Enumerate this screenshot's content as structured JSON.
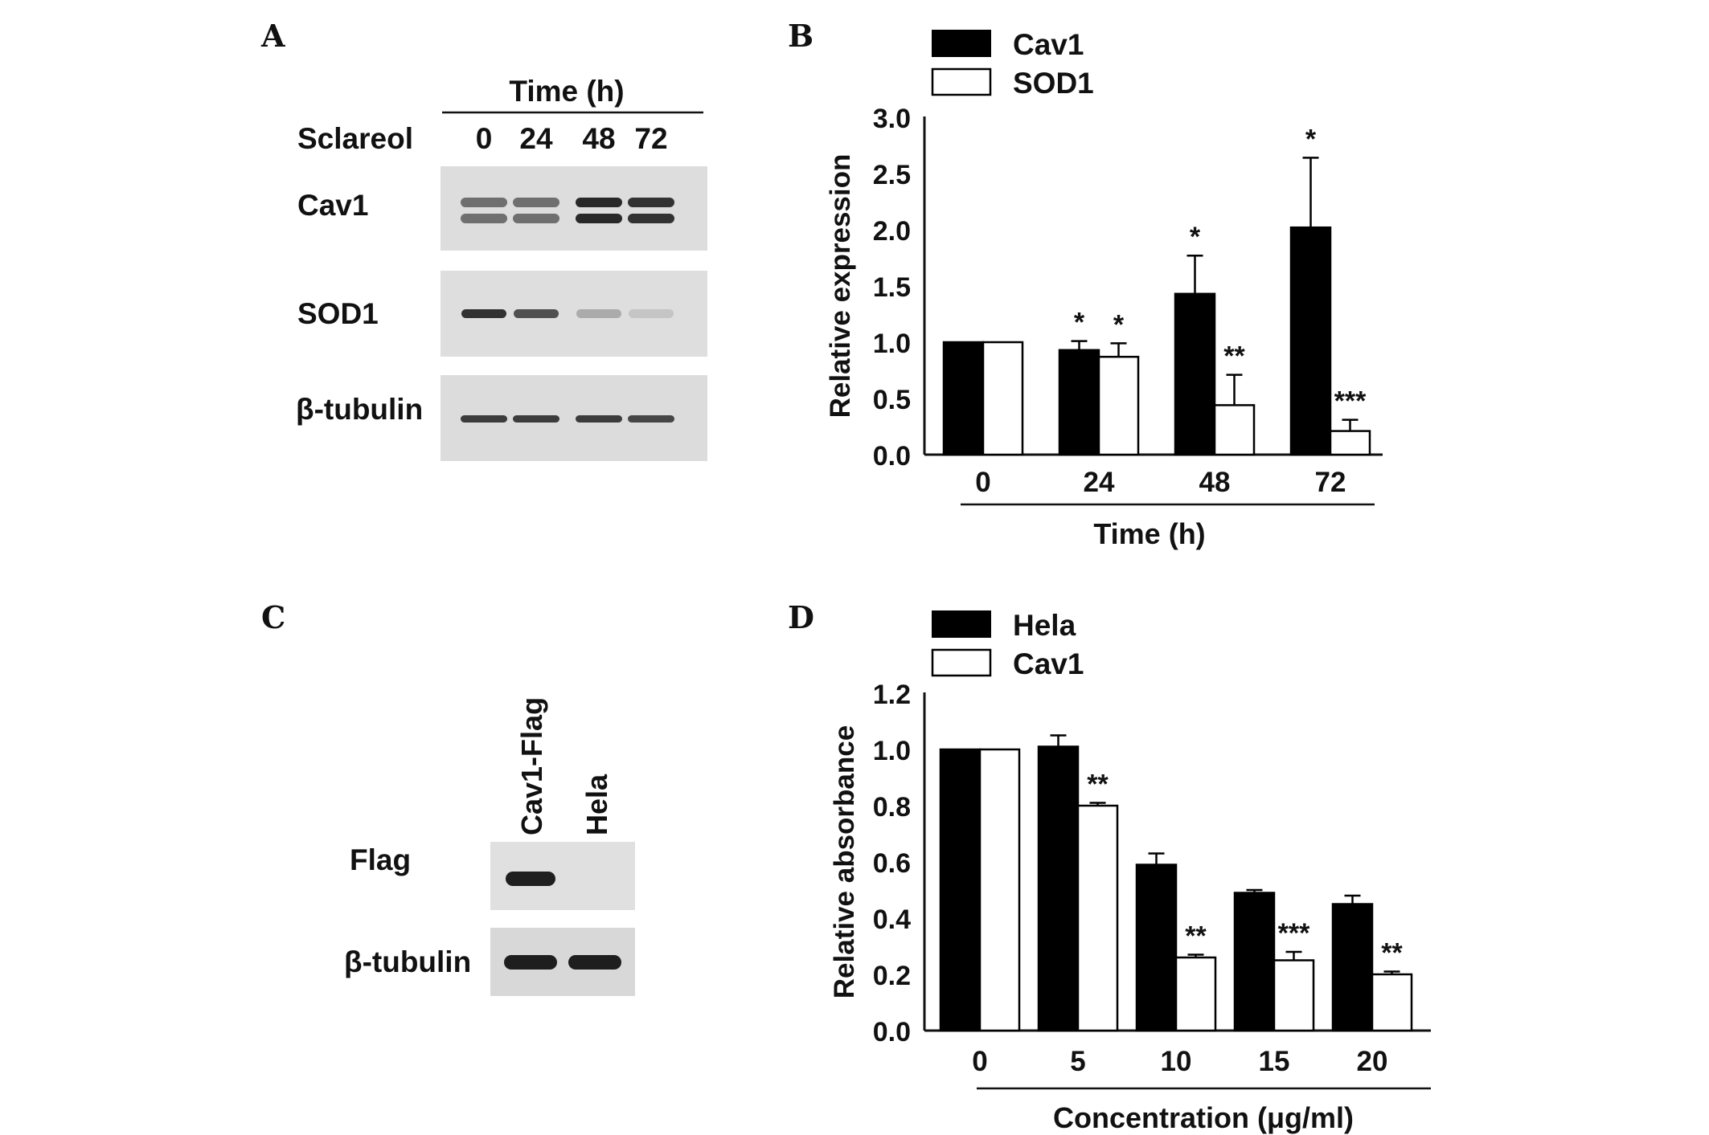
{
  "panels": {
    "A": {
      "label": "A",
      "header": "Time (h)",
      "treatment": "Sclareol",
      "lanes": [
        "0",
        "24",
        "48",
        "72"
      ],
      "rows": [
        {
          "name": "Cav1",
          "intensity": [
            0.55,
            0.55,
            0.9,
            0.85
          ]
        },
        {
          "name": "SOD1",
          "intensity": [
            0.85,
            0.7,
            0.25,
            0.12
          ]
        },
        {
          "name": "β-tubulin",
          "intensity": [
            0.8,
            0.8,
            0.8,
            0.75
          ]
        }
      ]
    },
    "C": {
      "label": "C",
      "lanes": [
        "Cav1-Flag",
        "Hela"
      ],
      "rows": [
        {
          "name": "Flag",
          "intensity": [
            0.95,
            0
          ]
        },
        {
          "name": "β-tubulin",
          "intensity": [
            0.95,
            0.95
          ]
        }
      ]
    }
  },
  "chart_data": [
    {
      "panel": "B",
      "type": "bar",
      "categories": [
        "0",
        "24",
        "48",
        "72"
      ],
      "xlabel": "Time (h)",
      "ylabel": "Relative expression",
      "ylim": [
        0,
        3.0
      ],
      "yticks": [
        "0.0",
        "0.5",
        "1.0",
        "1.5",
        "2.0",
        "2.5",
        "3.0"
      ],
      "legend": "top-left",
      "series": [
        {
          "name": "Cav1",
          "fill": "#000000",
          "values": [
            1.0,
            0.93,
            1.43,
            2.02
          ],
          "errors": [
            0,
            0.08,
            0.34,
            0.62
          ],
          "annotations": [
            "",
            "*",
            "*",
            "*"
          ]
        },
        {
          "name": "SOD1",
          "fill": "#ffffff",
          "values": [
            1.0,
            0.87,
            0.44,
            0.21
          ],
          "errors": [
            0,
            0.12,
            0.27,
            0.1
          ],
          "annotations": [
            "",
            "*",
            "**",
            "***"
          ]
        }
      ]
    },
    {
      "panel": "D",
      "type": "bar",
      "categories": [
        "0",
        "5",
        "10",
        "15",
        "20"
      ],
      "xlabel": "Concentration (μg/ml)",
      "ylabel": "Relative absorbance",
      "ylim": [
        0,
        1.2
      ],
      "yticks": [
        "0.0",
        "0.2",
        "0.4",
        "0.6",
        "0.8",
        "1.0",
        "1.2"
      ],
      "legend": "top-left",
      "series": [
        {
          "name": "Hela",
          "fill": "#000000",
          "values": [
            1.0,
            1.01,
            0.59,
            0.49,
            0.45
          ],
          "errors": [
            0,
            0.04,
            0.04,
            0.01,
            0.03
          ],
          "annotations": [
            "",
            "",
            "",
            "",
            ""
          ]
        },
        {
          "name": "Cav1",
          "fill": "#ffffff",
          "values": [
            1.0,
            0.8,
            0.26,
            0.25,
            0.2
          ],
          "errors": [
            0,
            0.01,
            0.01,
            0.03,
            0.01
          ],
          "annotations": [
            "",
            "**",
            "**",
            "***",
            "**"
          ]
        }
      ]
    }
  ]
}
